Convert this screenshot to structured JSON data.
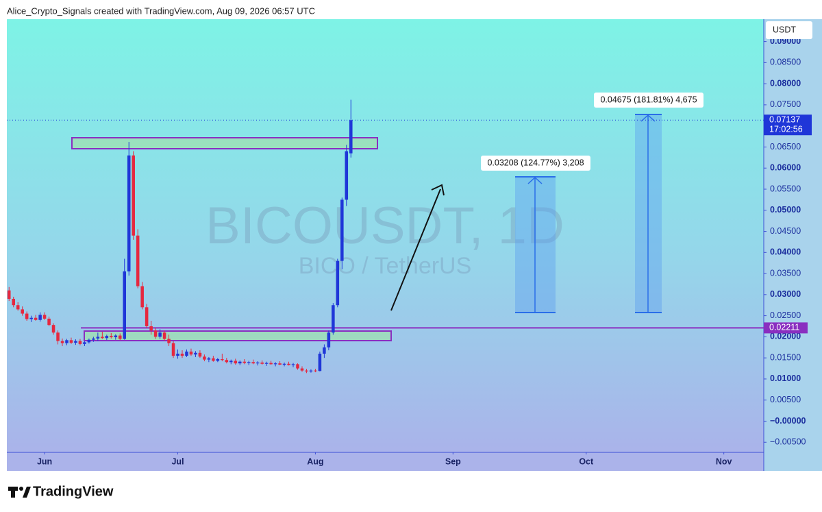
{
  "header": "Alice_Crypto_Signals created with TradingView.com, Aug 09, 2026 06:57 UTC",
  "brand": "TradingView",
  "chart_data": {
    "type": "candlestick",
    "watermark": {
      "symbol": "BICOUSDT, 1D",
      "description": "BICO / TetherUS"
    },
    "currency": "USDT",
    "last_price": 0.07137,
    "countdown": "17:02:56",
    "level": 0.02211,
    "measurements": [
      "0.03208 (124.77%) 3,208",
      "0.04675 (181.81%) 4,675"
    ],
    "up_color": "#1f36d8",
    "down_color": "#e5283f",
    "xlim": [
      -8.5,
      162
    ],
    "xticks": [
      {
        "value": 0,
        "label": "Jun"
      },
      {
        "value": 30,
        "label": "Jul"
      },
      {
        "value": 61,
        "label": "Aug"
      },
      {
        "value": 92,
        "label": "Sep"
      },
      {
        "value": 122,
        "label": "Oct"
      },
      {
        "value": 153,
        "label": "Nov"
      }
    ],
    "ylim": [
      -0.0074,
      0.0953
    ],
    "yticks": [
      {
        "value": -0.005,
        "label": "−0.00500"
      },
      {
        "value": 0,
        "label": "−0.00000"
      },
      {
        "value": 0.005,
        "label": "0.00500"
      },
      {
        "value": 0.01,
        "label": "0.01000"
      },
      {
        "value": 0.015,
        "label": "0.01500"
      },
      {
        "value": 0.02,
        "label": "0.02000"
      },
      {
        "value": 0.025,
        "label": "0.02500"
      },
      {
        "value": 0.03,
        "label": "0.03000"
      },
      {
        "value": 0.035,
        "label": "0.03500"
      },
      {
        "value": 0.04,
        "label": "0.04000"
      },
      {
        "value": 0.045,
        "label": "0.04500"
      },
      {
        "value": 0.05,
        "label": "0.05000"
      },
      {
        "value": 0.055,
        "label": "0.05500"
      },
      {
        "value": 0.06,
        "label": "0.06000"
      },
      {
        "value": 0.065,
        "label": "0.06500"
      },
      {
        "value": 0.07,
        "label": "0.07000"
      },
      {
        "value": 0.075,
        "label": "0.07500"
      },
      {
        "value": 0.08,
        "label": "0.08000"
      },
      {
        "value": 0.085,
        "label": "0.08500"
      },
      {
        "value": 0.09,
        "label": "0.09000"
      }
    ],
    "x": [
      -8,
      -7,
      -6,
      -5,
      -4,
      -3,
      -2,
      -1,
      0,
      1,
      2,
      3,
      4,
      5,
      6,
      7,
      8,
      9,
      10,
      11,
      12,
      13,
      14,
      15,
      16,
      17,
      18,
      19,
      20,
      21,
      22,
      23,
      24,
      25,
      26,
      27,
      28,
      29,
      30,
      31,
      32,
      33,
      34,
      35,
      36,
      37,
      38,
      39,
      40,
      41,
      42,
      43,
      44,
      45,
      46,
      47,
      48,
      49,
      50,
      51,
      52,
      53,
      54,
      55,
      56,
      57,
      58,
      59,
      60,
      61,
      62,
      63,
      64,
      65,
      66,
      67,
      68,
      69
    ],
    "open": [
      0.031,
      0.029,
      0.0275,
      0.0265,
      0.0255,
      0.0242,
      0.0245,
      0.024,
      0.0252,
      0.0243,
      0.0228,
      0.021,
      0.019,
      0.0185,
      0.0192,
      0.0186,
      0.019,
      0.0183,
      0.0187,
      0.0193,
      0.0196,
      0.02,
      0.0197,
      0.0202,
      0.0199,
      0.0203,
      0.0195,
      0.0355,
      0.063,
      0.044,
      0.032,
      0.027,
      0.0225,
      0.0215,
      0.02,
      0.021,
      0.0195,
      0.0185,
      0.0155,
      0.016,
      0.0155,
      0.0165,
      0.0158,
      0.0162,
      0.0153,
      0.0146,
      0.0149,
      0.0143,
      0.0147,
      0.0145,
      0.014,
      0.0143,
      0.0137,
      0.0141,
      0.0138,
      0.014,
      0.0137,
      0.0139,
      0.0136,
      0.0138,
      0.0135,
      0.0137,
      0.0134,
      0.0136,
      0.0133,
      0.0135,
      0.0125,
      0.012,
      0.0118,
      0.012,
      0.0119,
      0.016,
      0.0175,
      0.021,
      0.0275,
      0.038,
      0.0525,
      0.0635
    ],
    "high": [
      0.0318,
      0.0295,
      0.0282,
      0.0272,
      0.026,
      0.025,
      0.0252,
      0.0258,
      0.0258,
      0.0248,
      0.0232,
      0.0215,
      0.0196,
      0.0195,
      0.0198,
      0.0194,
      0.0195,
      0.019,
      0.0196,
      0.02,
      0.021,
      0.0212,
      0.0205,
      0.0209,
      0.0206,
      0.0208,
      0.0385,
      0.0662,
      0.064,
      0.0455,
      0.033,
      0.0278,
      0.0238,
      0.0222,
      0.0218,
      0.0215,
      0.0205,
      0.019,
      0.017,
      0.0168,
      0.017,
      0.0172,
      0.0166,
      0.0168,
      0.0158,
      0.0152,
      0.0155,
      0.015,
      0.016,
      0.015,
      0.0146,
      0.0148,
      0.0144,
      0.0147,
      0.0143,
      0.0146,
      0.0142,
      0.0144,
      0.0141,
      0.0143,
      0.014,
      0.0142,
      0.0139,
      0.0141,
      0.0138,
      0.0137,
      0.013,
      0.0124,
      0.0123,
      0.0124,
      0.0165,
      0.0182,
      0.0215,
      0.028,
      0.0385,
      0.053,
      0.0655,
      0.0762
    ],
    "low": [
      0.0285,
      0.027,
      0.0262,
      0.025,
      0.0238,
      0.0235,
      0.0238,
      0.0236,
      0.024,
      0.0225,
      0.0205,
      0.0182,
      0.0178,
      0.018,
      0.0183,
      0.0181,
      0.018,
      0.0178,
      0.0184,
      0.0188,
      0.019,
      0.0195,
      0.0192,
      0.0196,
      0.0193,
      0.0192,
      0.0193,
      0.0345,
      0.043,
      0.0315,
      0.0265,
      0.022,
      0.0205,
      0.0195,
      0.0195,
      0.019,
      0.0178,
      0.015,
      0.0148,
      0.015,
      0.0152,
      0.0155,
      0.0152,
      0.015,
      0.0142,
      0.014,
      0.0141,
      0.014,
      0.0142,
      0.0137,
      0.0135,
      0.0134,
      0.0133,
      0.0135,
      0.0133,
      0.0135,
      0.0132,
      0.0134,
      0.0131,
      0.0134,
      0.013,
      0.0133,
      0.013,
      0.0132,
      0.0128,
      0.0122,
      0.0117,
      0.0114,
      0.0115,
      0.0116,
      0.0118,
      0.015,
      0.0168,
      0.0205,
      0.027,
      0.036,
      0.051,
      0.0625
    ],
    "close": [
      0.029,
      0.0275,
      0.0265,
      0.0255,
      0.0242,
      0.0245,
      0.024,
      0.0252,
      0.0243,
      0.0228,
      0.021,
      0.019,
      0.0185,
      0.0192,
      0.0186,
      0.019,
      0.0183,
      0.0187,
      0.0193,
      0.0196,
      0.02,
      0.0197,
      0.0202,
      0.0199,
      0.0203,
      0.0195,
      0.0355,
      0.063,
      0.044,
      0.032,
      0.027,
      0.0225,
      0.0215,
      0.02,
      0.021,
      0.0195,
      0.0185,
      0.0155,
      0.016,
      0.0155,
      0.0165,
      0.0158,
      0.0162,
      0.0153,
      0.0146,
      0.0149,
      0.0143,
      0.0147,
      0.0145,
      0.014,
      0.0143,
      0.0137,
      0.0141,
      0.0138,
      0.014,
      0.0137,
      0.0139,
      0.0136,
      0.0138,
      0.0135,
      0.0137,
      0.0134,
      0.0136,
      0.0133,
      0.0135,
      0.0125,
      0.012,
      0.0118,
      0.012,
      0.0119,
      0.016,
      0.0175,
      0.021,
      0.0275,
      0.038,
      0.0525,
      0.064,
      0.07137
    ]
  }
}
